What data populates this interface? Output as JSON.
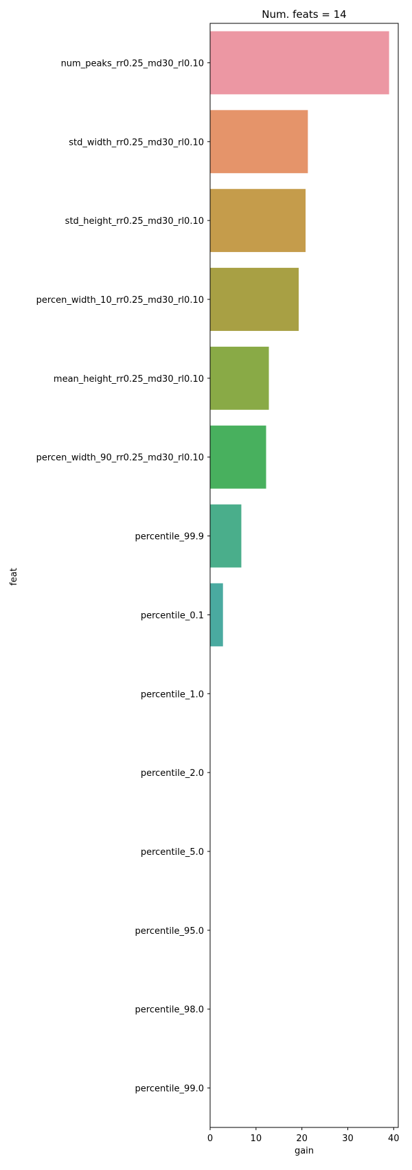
{
  "chart_data": {
    "type": "bar",
    "orientation": "horizontal",
    "title": "Num. feats = 14",
    "xlabel": "gain",
    "ylabel": "feat",
    "xlim": [
      0,
      41
    ],
    "xticks": [
      0,
      10,
      20,
      30,
      40
    ],
    "grid": false,
    "legend": "none",
    "categories": [
      "num_peaks_rr0.25_md30_rl0.10",
      "std_width_rr0.25_md30_rl0.10",
      "std_height_rr0.25_md30_rl0.10",
      "percen_width_10_rr0.25_md30_rl0.10",
      "mean_height_rr0.25_md30_rl0.10",
      "percen_width_90_rr0.25_md30_rl0.10",
      "percentile_99.9",
      "percentile_0.1",
      "percentile_1.0",
      "percentile_2.0",
      "percentile_5.0",
      "percentile_95.0",
      "percentile_98.0",
      "percentile_99.0"
    ],
    "values": [
      39.0,
      21.3,
      20.8,
      19.3,
      12.8,
      12.2,
      6.8,
      2.8,
      0,
      0,
      0,
      0,
      0,
      0
    ],
    "colors": [
      "#ec97a3",
      "#e5946a",
      "#c59c4b",
      "#a8a044",
      "#89aa46",
      "#48b05e",
      "#4aae8b",
      "#4aaaa0",
      "#4aa7b4",
      "#5aa7d6",
      "#8fa6e8",
      "#b99be8",
      "#dd8fe0",
      "#ea91c1"
    ]
  }
}
